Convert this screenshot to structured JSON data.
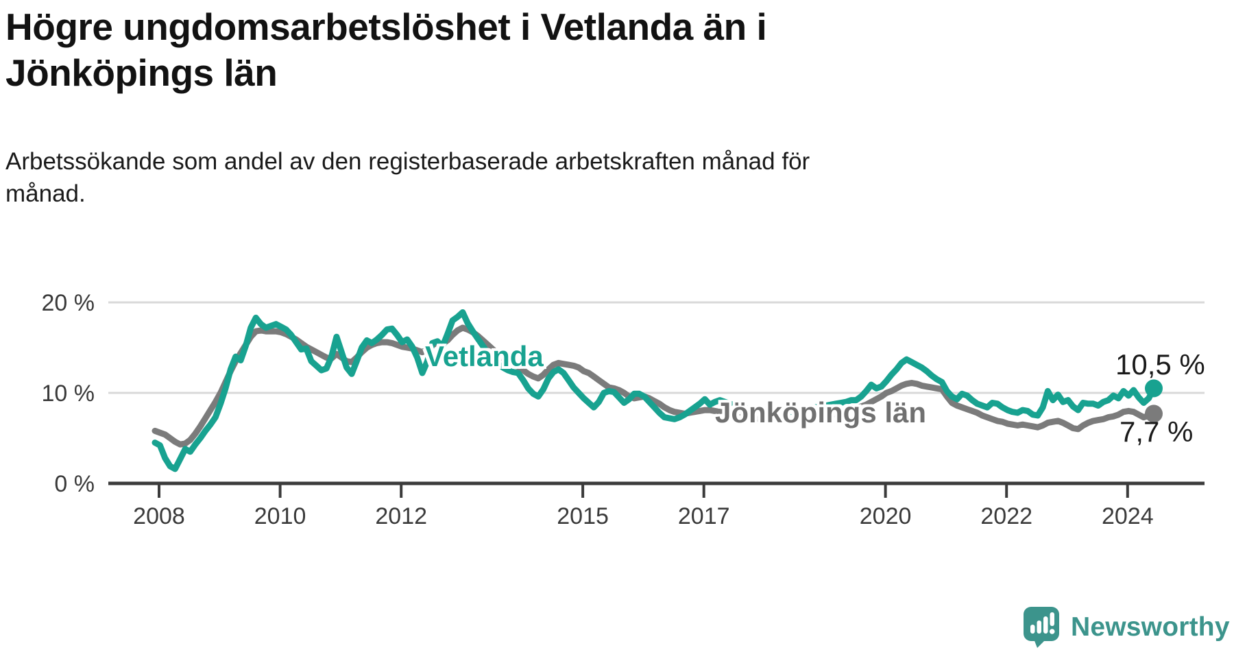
{
  "title": {
    "text": "Högre ungdomsarbetslöshet i Vetlanda än i Jönköpings län",
    "line1": "Högre ungdomsarbetslöshet i Vetlanda än i",
    "line2": "Jönköpings län"
  },
  "subtitle": {
    "text": "Arbetssökande som andel av den registerbaserade arbetskraften månad för månad.",
    "line1": "Arbetssökande som andel av den registerbaserade arbetskraften månad för",
    "line2": "månad."
  },
  "branding": {
    "wordmark": "Newsworthy",
    "logo_color": "#3c948c",
    "logo_icon": "bar-chart-exclamation-speech-bubble"
  },
  "colors": {
    "vetlanda_line": "#18a290",
    "jonkopings_line": "#7b7b7b",
    "gridline": "#d9d9d9",
    "axis": "#3b3b3b",
    "text": "#3a3a3a"
  },
  "chart_data": {
    "type": "line",
    "unit": "%",
    "x_start_year": 2008,
    "x_resolution": "monthly",
    "x_end": "mid 2024",
    "grid": "horizontal",
    "ylim": [
      0,
      21.5
    ],
    "x_ticks": [
      2008,
      2010,
      2012,
      2015,
      2017,
      2020,
      2022,
      2024
    ],
    "x_tick_labels": [
      "2008",
      "2010",
      "2012",
      "2015",
      "2017",
      "2020",
      "2022",
      "2024"
    ],
    "y_tick_labels": [
      "20 %",
      "10 %",
      "0 %"
    ],
    "y_tick_values": [
      20,
      10,
      0
    ],
    "series": [
      {
        "name": "Vetlanda",
        "color": "#18a290",
        "end_label": "10,5 %",
        "end_value": 10.5,
        "values": [
          4.5,
          4.2,
          2.8,
          1.9,
          1.6,
          2.7,
          3.8,
          3.5,
          4.3,
          5.0,
          5.8,
          6.5,
          7.3,
          8.8,
          10.5,
          12.6,
          14.0,
          13.6,
          15.2,
          17.2,
          18.3,
          17.6,
          17.2,
          17.4,
          17.6,
          17.3,
          17.0,
          16.4,
          15.6,
          14.8,
          14.9,
          13.5,
          13.0,
          12.5,
          12.7,
          14.0,
          16.2,
          14.5,
          12.8,
          12.1,
          13.5,
          15.0,
          15.8,
          15.5,
          15.9,
          16.4,
          17.0,
          17.1,
          16.4,
          15.6,
          15.9,
          15.1,
          13.9,
          12.2,
          13.5,
          15.5,
          15.7,
          15.1,
          16.5,
          18.0,
          18.4,
          18.9,
          17.7,
          16.8,
          16.0,
          15.2,
          14.4,
          13.8,
          13.2,
          12.8,
          12.5,
          12.3,
          12.2,
          11.4,
          10.5,
          9.9,
          9.6,
          10.4,
          11.6,
          12.3,
          12.6,
          12.2,
          11.4,
          10.6,
          10.0,
          9.4,
          8.9,
          8.4,
          9.0,
          10.0,
          10.2,
          10.1,
          9.5,
          8.9,
          9.3,
          9.9,
          9.9,
          9.6,
          9.0,
          8.4,
          7.8,
          7.3,
          7.2,
          7.1,
          7.3,
          7.6,
          8.0,
          8.4,
          8.8,
          9.3,
          8.7,
          9.0,
          9.2,
          9.0,
          8.8,
          8.6,
          8.4,
          8.3,
          8.2,
          8.1,
          8.0,
          7.9,
          7.9,
          7.8,
          7.8,
          7.9,
          7.9,
          8.0,
          8.1,
          8.2,
          8.3,
          8.4,
          8.5,
          8.6,
          8.7,
          8.8,
          8.9,
          9.0,
          9.2,
          9.2,
          9.6,
          10.2,
          10.9,
          10.5,
          10.7,
          11.3,
          12.0,
          12.6,
          13.3,
          13.7,
          13.4,
          13.1,
          12.8,
          12.4,
          11.9,
          11.5,
          11.2,
          10.2,
          9.6,
          9.3,
          9.9,
          9.7,
          9.2,
          8.8,
          8.6,
          8.4,
          8.9,
          8.8,
          8.4,
          8.1,
          7.9,
          7.8,
          8.1,
          8.0,
          7.6,
          7.5,
          8.4,
          10.2,
          9.2,
          9.8,
          9.0,
          9.2,
          8.5,
          8.1,
          8.9,
          8.8,
          8.8,
          8.6,
          9.0,
          9.2,
          9.7,
          9.4,
          10.2,
          9.7,
          10.3,
          9.5,
          8.9,
          9.4,
          10.5
        ]
      },
      {
        "name": "Jönköpings län",
        "color": "#7b7b7b",
        "end_label": "7,7 %",
        "end_value": 7.7,
        "values": [
          5.8,
          5.6,
          5.4,
          5.0,
          4.6,
          4.3,
          4.4,
          4.8,
          5.5,
          6.3,
          7.2,
          8.1,
          9.0,
          10.0,
          11.2,
          12.4,
          13.5,
          14.4,
          15.3,
          16.2,
          16.8,
          16.9,
          16.8,
          16.8,
          16.8,
          16.7,
          16.5,
          16.2,
          15.9,
          15.5,
          15.1,
          14.8,
          14.5,
          14.2,
          13.9,
          13.8,
          14.3,
          13.9,
          13.5,
          13.4,
          13.9,
          14.5,
          15.0,
          15.3,
          15.5,
          15.6,
          15.6,
          15.5,
          15.3,
          15.1,
          15.0,
          14.9,
          14.7,
          14.5,
          14.8,
          15.3,
          15.5,
          15.4,
          15.8,
          16.4,
          16.9,
          17.2,
          17.0,
          16.7,
          16.3,
          15.8,
          15.3,
          14.8,
          14.3,
          13.8,
          13.4,
          13.1,
          12.9,
          12.5,
          12.1,
          11.8,
          11.6,
          12.0,
          12.6,
          13.1,
          13.3,
          13.2,
          13.1,
          13.0,
          12.8,
          12.4,
          12.2,
          11.8,
          11.4,
          11.0,
          10.6,
          10.5,
          10.3,
          10.0,
          9.6,
          9.4,
          9.5,
          9.6,
          9.4,
          9.1,
          8.8,
          8.4,
          8.1,
          7.9,
          7.8,
          7.7,
          7.8,
          7.9,
          8.0,
          8.1,
          8.1,
          8.0,
          7.9,
          7.8,
          7.7,
          7.6,
          7.5,
          7.4,
          7.3,
          7.2,
          7.1,
          7.0,
          6.9,
          6.9,
          6.9,
          6.9,
          7.0,
          7.0,
          7.1,
          7.2,
          7.2,
          7.3,
          7.4,
          7.5,
          7.6,
          7.7,
          7.9,
          8.0,
          8.2,
          8.3,
          8.5,
          8.7,
          9.0,
          9.3,
          9.6,
          10.0,
          10.2,
          10.5,
          10.8,
          11.0,
          11.1,
          11.0,
          10.8,
          10.7,
          10.6,
          10.5,
          10.4,
          9.6,
          8.9,
          8.6,
          8.4,
          8.2,
          8.0,
          7.8,
          7.5,
          7.3,
          7.1,
          6.9,
          6.8,
          6.6,
          6.5,
          6.4,
          6.5,
          6.4,
          6.3,
          6.2,
          6.4,
          6.7,
          6.8,
          6.9,
          6.7,
          6.4,
          6.1,
          6.0,
          6.4,
          6.7,
          6.9,
          7.0,
          7.1,
          7.3,
          7.4,
          7.6,
          7.9,
          8.0,
          7.9,
          7.6,
          7.3,
          7.5,
          7.7
        ]
      }
    ]
  }
}
